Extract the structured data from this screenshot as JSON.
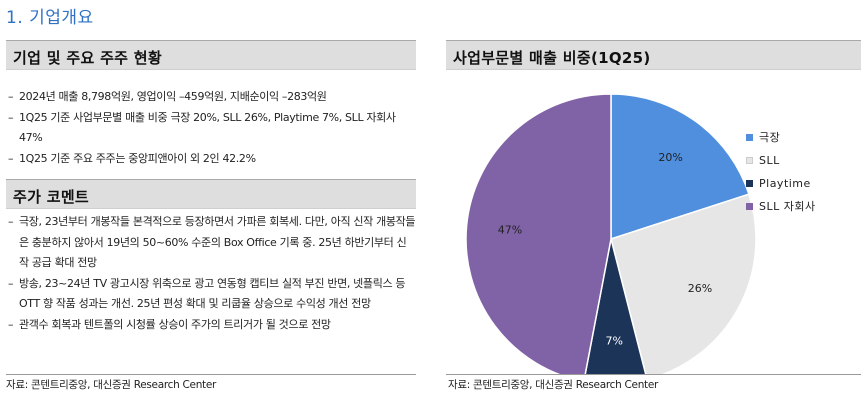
{
  "page_title": "1.  기업개요",
  "left": {
    "overview_header": "기업 및 주요 주주 현황",
    "overview_items": [
      "2024년 매출 8,798억원, 영업이익 –459억원, 지배순이익 –283억원",
      "1Q25 기준 사업부문별 매출 비중 극장 20%, SLL 26%, Playtime 7%, SLL 자회사 47%",
      "1Q25 기준 주요 주주는 중앙피앤아이 외 2인 42.2%"
    ],
    "stock_header": "주가 코멘트",
    "stock_items": [
      "극장, 23년부터 개봉작들 본격적으로 등장하면서 가파른 회복세. 다만, 아직 신작 개봉작들은 충분하지 않아서 19년의 50~60% 수준의 Box Office 기록 중. 25년 하반기부터 신작 공급 확대 전망",
      "방송, 23~24년 TV 광고시장 위축으로 광고 연동형 캡티브 실적 부진 반면, 넷플릭스 등 OTT 향 작품 성과는 개선. 25년 편성 확대 및 리쿱율 상승으로 수익성 개선 전망",
      "관객수 회복과 텐트폴의 시청률 상승이 주가의 트리거가 될 것으로 전망"
    ],
    "source": "자료: 콘텐트리중앙, 대신증권 Research Center"
  },
  "right": {
    "chart_header": "사업부문별 매출 비중(1Q25)",
    "source": "자료: 콘텐트리중앙, 대신증권 Research Center"
  },
  "chart_data": {
    "type": "pie",
    "title": "사업부문별 매출 비중(1Q25)",
    "unit": "%",
    "legend_position": "right",
    "start_angle_deg": 0,
    "direction": "clockwise",
    "slices": [
      {
        "name": "극장",
        "value": 20,
        "label": "20%",
        "color": "#4f8fde"
      },
      {
        "name": "SLL",
        "value": 26,
        "label": "26%",
        "color": "#e6e6e6"
      },
      {
        "name": "Playtime",
        "value": 7,
        "label": "7%",
        "color": "#1d3459"
      },
      {
        "name": "SLL 자회사",
        "value": 47,
        "label": "47%",
        "color": "#8062a6"
      }
    ]
  }
}
